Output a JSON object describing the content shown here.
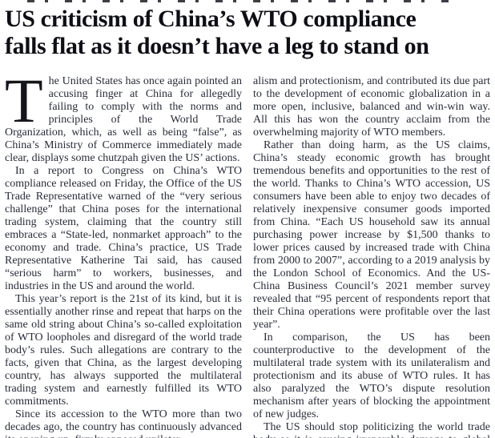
{
  "article": {
    "headline_line1": "US criticism of China’s WTO compliance",
    "headline_line2": "falls flat as it doesn’t have a leg to stand on",
    "drop_cap": "T",
    "columns": {
      "left": [
        "he United States has once again pointed an accusing finger at China for allegedly failing to comply with the norms and principles of the World Trade Organization, which, as well as being “false”, as China’s Ministry of Commerce immediately made clear, displays some chutzpah given the US’ actions.",
        "In a report to Congress on China’s WTO compliance released on Friday, the Office of the US Trade Representative warned of the “very serious challenge” that China poses for the international trading system, claiming that the country still embraces a “State-led, nonmarket approach” to the economy and trade. China’s practice, US Trade Representative Katherine Tai said, has caused “serious harm” to workers, businesses, and industries in the US and around the world.",
        "This year’s report is the 21st of its kind, but it is essentially another rinse and repeat that harps on the same old string about China’s so-called exploitation of WTO loopholes and disregard of the world trade body’s rules. Such allegations are contrary to the facts, given that China, as the largest developing country, has always supported the multilateral trading system and earnestly fulfilled its WTO commitments.",
        "Since its accession to the WTO more than two decades ago, the country has continuously advanced its opening-up, firmly opposed unilater-"
      ],
      "right": [
        "alism and protectionism, and contributed its due part to the development of economic globalization in a more open, inclusive, balanced and win-win way. All this has won the country acclaim from the overwhelming majority of WTO members.",
        "Rather than doing harm, as the US claims, China’s steady economic growth has brought tremendous benefits and opportunities to the rest of the world. Thanks to China’s WTO accession, US consumers have been able to enjoy two decades of relatively inexpensive consumer goods imported from China. “Each US household saw its annual purchasing power increase by $1,500 thanks to lower prices caused by increased trade with China from 2000 to 2007”, according to a 2019 analysis by the London School of Economics. And the US-China Business Council’s 2021 member survey revealed that “95 percent of respondents report that their China operations were profitable over the last year”.",
        "In comparison, the US has been counterproductive to the development of the multilateral trade system with its unilateralism and protectionism and its abuse of WTO rules. It has also paralyzed the WTO’s dispute resolution mechanism after years of blocking the appointment of new judges.",
        "The US should stop politicizing the world trade body as it is causing irreparable damage to global economic and trade ties."
      ]
    },
    "colors": {
      "headline": "#0e0e16",
      "body_text": "#272c38",
      "background": "#ffffff"
    }
  }
}
